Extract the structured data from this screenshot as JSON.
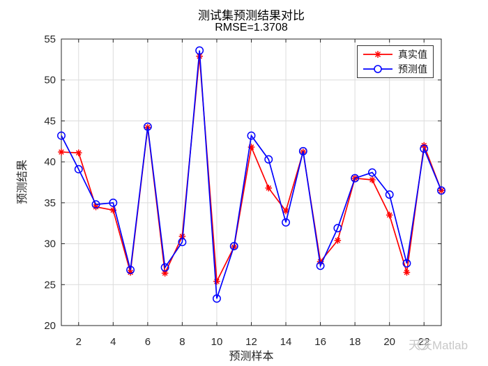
{
  "header": {
    "title": "测试集预测结果对比",
    "subtitle": "RMSE=1.3708"
  },
  "axes": {
    "xlabel": "预测样本",
    "ylabel": "预测结果"
  },
  "legend": {
    "position": "top-right",
    "items": [
      {
        "label": "真实值",
        "color": "#ff0000",
        "marker": "asterisk"
      },
      {
        "label": "预测值",
        "color": "#0000ff",
        "marker": "circle"
      }
    ]
  },
  "watermark": {
    "text": "天天Matlab"
  },
  "colors": {
    "axis": "#262626",
    "grid": "#dcdcdc",
    "tick_label": "#262626",
    "series_true": "#ff0000",
    "series_pred": "#0000ff",
    "watermark": "#c8c8c8"
  },
  "chart_data": {
    "type": "line",
    "title": "测试集预测结果对比",
    "subtitle": "RMSE=1.3708",
    "xlabel": "预测样本",
    "ylabel": "预测结果",
    "x": [
      1,
      2,
      3,
      4,
      5,
      6,
      7,
      8,
      9,
      10,
      11,
      12,
      13,
      14,
      15,
      16,
      17,
      18,
      19,
      20,
      21,
      22,
      23
    ],
    "series": [
      {
        "name": "真实值",
        "color": "#ff0000",
        "marker": "asterisk",
        "values": [
          41.2,
          41.1,
          34.5,
          34.1,
          26.5,
          44.2,
          26.4,
          30.9,
          52.9,
          25.4,
          29.6,
          41.8,
          36.8,
          34.0,
          41.2,
          27.8,
          30.4,
          38.0,
          37.8,
          33.5,
          26.5,
          42.0,
          36.5
        ]
      },
      {
        "name": "预测值",
        "color": "#0000ff",
        "marker": "circle",
        "values": [
          43.2,
          39.1,
          34.8,
          35.0,
          26.8,
          44.3,
          27.1,
          30.2,
          53.6,
          23.3,
          29.7,
          43.2,
          40.3,
          32.6,
          41.3,
          27.3,
          31.9,
          38.0,
          38.7,
          36.0,
          27.6,
          41.6,
          36.5
        ]
      }
    ],
    "xlim": [
      1,
      23
    ],
    "ylim": [
      20,
      55
    ],
    "xticks": [
      2,
      4,
      6,
      8,
      10,
      12,
      14,
      16,
      18,
      20,
      22
    ],
    "yticks": [
      20,
      25,
      30,
      35,
      40,
      45,
      50,
      55
    ],
    "grid": true,
    "legend_position": "top-right"
  }
}
